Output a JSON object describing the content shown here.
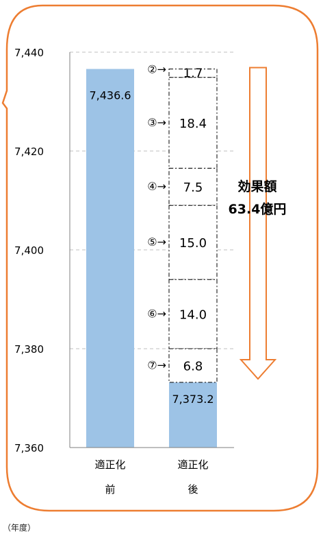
{
  "chart_data": {
    "type": "bar",
    "ylim": [
      7360,
      7440
    ],
    "yticks": [
      "7,360",
      "7,380",
      "7,400",
      "7,420",
      "7,440"
    ],
    "ytick_values": [
      7360,
      7380,
      7400,
      7420,
      7440
    ],
    "grid": true,
    "categories": [
      {
        "lines": [
          "適正化",
          "前"
        ]
      },
      {
        "lines": [
          "適正化",
          "後"
        ]
      }
    ],
    "bars": [
      {
        "value": 7436.6,
        "label": "7,436.6"
      },
      {
        "value": 7373.2,
        "label": "7,373.2"
      }
    ],
    "segments": [
      {
        "marker": "②→",
        "value": 1.7,
        "label": "1.7",
        "from": 7434.9,
        "to": 7436.6
      },
      {
        "marker": "③→",
        "value": 18.4,
        "label": "18.4",
        "from": 7416.5,
        "to": 7434.9
      },
      {
        "marker": "④→",
        "value": 7.5,
        "label": "7.5",
        "from": 7409.0,
        "to": 7416.5
      },
      {
        "marker": "⑤→",
        "value": 15.0,
        "label": "15.0",
        "from": 7394.0,
        "to": 7409.0
      },
      {
        "marker": "⑥→",
        "value": 14.0,
        "label": "14.0",
        "from": 7380.0,
        "to": 7394.0
      },
      {
        "marker": "⑦→",
        "value": 6.8,
        "label": "6.8",
        "from": 7373.2,
        "to": 7380.0
      }
    ],
    "annotation": {
      "line1": "効果額",
      "line2": "63.4億円",
      "value": 63.4
    },
    "colors": {
      "bar": "#9DC3E6",
      "frame": "#ED7D31",
      "arrow": "#ED7D31",
      "grid": "#BFBFBF",
      "axis": "#7F7F7F"
    }
  },
  "footer": {
    "year_note": "（年度）"
  }
}
